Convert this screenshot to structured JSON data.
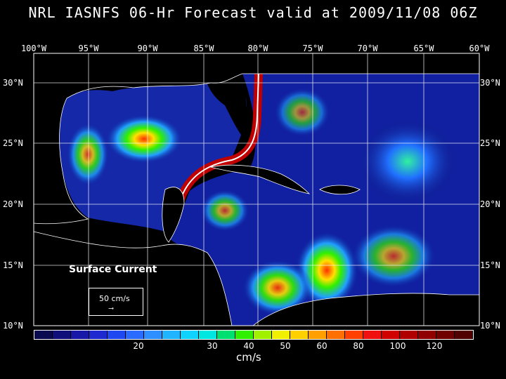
{
  "title": "NRL IASNFS  06-Hr Forecast valid at 2009/11/08 06Z",
  "lon_labels": [
    "100°W",
    "95°W",
    "90°W",
    "85°W",
    "80°W",
    "75°W",
    "70°W",
    "65°W",
    "60°W"
  ],
  "lat_labels": [
    "30°N",
    "25°N",
    "20°N",
    "15°N",
    "10°N"
  ],
  "map_label": "Surface Current",
  "reference_vector": {
    "label": "50 cm/s"
  },
  "colorbar": {
    "colors": [
      "#0a0a50",
      "#10107a",
      "#1818a8",
      "#1e2ad0",
      "#2048f0",
      "#2a6cff",
      "#2e90ff",
      "#20b4ff",
      "#10d2ff",
      "#00e6e0",
      "#00e070",
      "#30f000",
      "#a0f000",
      "#f0f000",
      "#ffd000",
      "#ffa000",
      "#ff7000",
      "#ff4000",
      "#f01010",
      "#d00000",
      "#b00000",
      "#900000",
      "#700000",
      "#500000"
    ],
    "tick_labels": [
      "20",
      "30",
      "40",
      "50",
      "60",
      "80",
      "100",
      "120"
    ],
    "units": "cm/s"
  }
}
